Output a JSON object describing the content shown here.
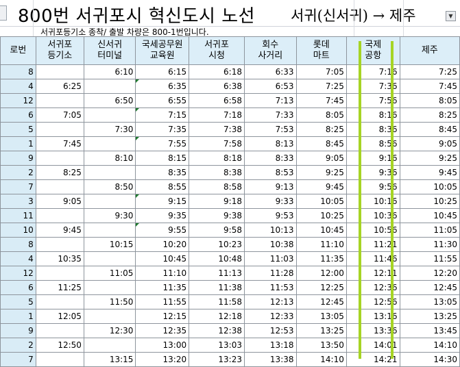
{
  "sheet": {
    "title": "800번 서귀포시 혁신도시 노선",
    "direction": "서귀(신서귀) → 제주",
    "note": "서귀포등기소 종착/ 출발 차량은 800-1번입니다.",
    "dropdown_icon": "dropdown-arrow-icon"
  },
  "columns": [
    {
      "l1": "로번",
      "l2": ""
    },
    {
      "l1": "서귀포",
      "l2": "등기소"
    },
    {
      "l1": "신서귀",
      "l2": "터미널"
    },
    {
      "l1": "국세공무원",
      "l2": "교육원"
    },
    {
      "l1": "서귀포",
      "l2": "시청"
    },
    {
      "l1": "회수",
      "l2": "사거리"
    },
    {
      "l1": "롯데",
      "l2": "마트"
    },
    {
      "l1": "국제",
      "l2": "공항"
    },
    {
      "l1": "제주",
      "l2": ""
    }
  ],
  "rows": [
    [
      "8",
      "",
      "6:10",
      "6:15",
      "6:18",
      "6:33",
      "7:05",
      "7:16",
      "7:25"
    ],
    [
      "4",
      "6:25",
      "",
      "6:35",
      "6:38",
      "6:53",
      "7:25",
      "7:36",
      "7:45"
    ],
    [
      "12",
      "",
      "6:50",
      "6:55",
      "6:58",
      "7:13",
      "7:45",
      "7:56",
      "8:05"
    ],
    [
      "6",
      "7:05",
      "",
      "7:15",
      "7:18",
      "7:33",
      "8:05",
      "8:16",
      "8:25"
    ],
    [
      "5",
      "",
      "7:30",
      "7:35",
      "7:38",
      "7:53",
      "8:25",
      "8:36",
      "8:45"
    ],
    [
      "1",
      "7:45",
      "",
      "7:55",
      "7:58",
      "8:13",
      "8:45",
      "8:56",
      "9:05"
    ],
    [
      "9",
      "",
      "8:10",
      "8:15",
      "8:18",
      "8:33",
      "9:05",
      "9:16",
      "9:25"
    ],
    [
      "2",
      "8:25",
      "",
      "8:35",
      "8:38",
      "8:53",
      "9:25",
      "9:36",
      "9:45"
    ],
    [
      "7",
      "",
      "8:50",
      "8:55",
      "8:58",
      "9:13",
      "9:45",
      "9:56",
      "10:05"
    ],
    [
      "3",
      "9:05",
      "",
      "9:15",
      "9:18",
      "9:33",
      "10:05",
      "10:16",
      "10:25"
    ],
    [
      "11",
      "",
      "9:30",
      "9:35",
      "9:38",
      "9:53",
      "10:25",
      "10:36",
      "10:45"
    ],
    [
      "10",
      "9:45",
      "",
      "9:55",
      "9:58",
      "10:13",
      "10:45",
      "10:56",
      "11:05"
    ],
    [
      "8",
      "",
      "10:15",
      "10:20",
      "10:23",
      "10:38",
      "11:10",
      "11:21",
      "11:30"
    ],
    [
      "4",
      "10:35",
      "",
      "10:45",
      "10:48",
      "11:03",
      "11:35",
      "11:46",
      "11:55"
    ],
    [
      "12",
      "",
      "11:05",
      "11:10",
      "11:13",
      "11:28",
      "12:00",
      "12:11",
      "12:20"
    ],
    [
      "6",
      "11:25",
      "",
      "11:35",
      "11:38",
      "11:53",
      "12:25",
      "12:36",
      "12:45"
    ],
    [
      "5",
      "",
      "11:50",
      "11:55",
      "11:58",
      "12:13",
      "12:45",
      "12:56",
      "13:05"
    ],
    [
      "1",
      "12:05",
      "",
      "12:15",
      "12:18",
      "12:33",
      "13:05",
      "13:16",
      "13:25"
    ],
    [
      "9",
      "",
      "12:30",
      "12:35",
      "12:38",
      "12:53",
      "13:25",
      "13:36",
      "13:45"
    ],
    [
      "2",
      "12:50",
      "",
      "13:00",
      "13:03",
      "13:18",
      "13:50",
      "14:01",
      "14:10"
    ],
    [
      "7",
      "",
      "13:15",
      "13:20",
      "13:23",
      "13:38",
      "14:10",
      "14:21",
      "14:30"
    ]
  ],
  "comment_marked_rows": [
    1,
    3,
    5,
    9,
    11
  ],
  "highlight": {
    "column_index": 7,
    "color": "#a6d424"
  },
  "colors": {
    "header_fill": "#dceef8",
    "lane_fill": "#d9ecf6",
    "grid_line": "#8d949c",
    "comment_marker": "#1e7a2e"
  }
}
